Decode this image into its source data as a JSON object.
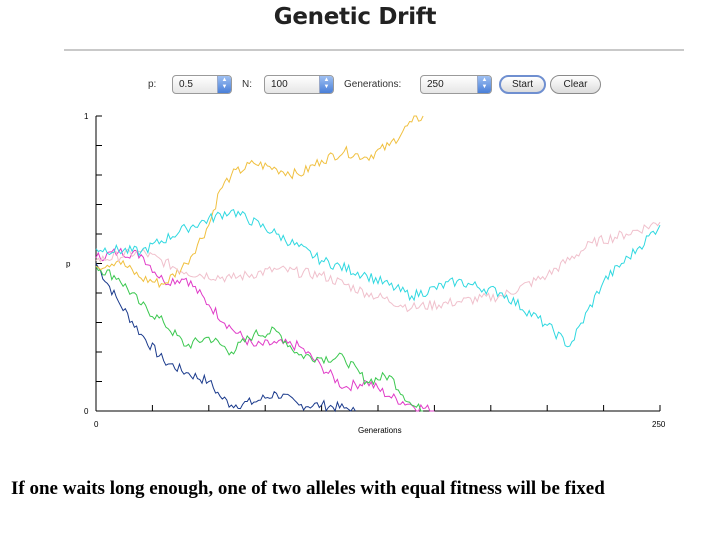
{
  "app": {
    "title": "Genetic Drift"
  },
  "controls": {
    "p_label": "p:",
    "p_value": "0.5",
    "n_label": "N:",
    "n_value": "100",
    "generations_label": "Generations:",
    "generations_value": "250",
    "start_label": "Start",
    "clear_label": "Clear"
  },
  "chart_data": {
    "type": "line",
    "xlabel": "Generations",
    "ylabel": "p",
    "xlim": [
      0,
      250
    ],
    "ylim": [
      0,
      1
    ],
    "x_tick_labels": [
      "0",
      "250"
    ],
    "y_tick_labels": [
      "0",
      "1"
    ],
    "grid": false,
    "series": [
      {
        "color": "#1a3a8c",
        "points": [
          [
            0,
            0.5
          ],
          [
            10,
            0.37
          ],
          [
            20,
            0.26
          ],
          [
            30,
            0.17
          ],
          [
            40,
            0.13
          ],
          [
            50,
            0.1
          ],
          [
            55,
            0.05
          ],
          [
            60,
            0.02
          ],
          [
            70,
            0.03
          ],
          [
            80,
            0.06
          ],
          [
            90,
            0.02
          ],
          [
            100,
            0.02
          ],
          [
            110,
            0.01
          ],
          [
            115,
            0.0
          ]
        ]
      },
      {
        "color": "#e03cc8",
        "points": [
          [
            0,
            0.52
          ],
          [
            10,
            0.54
          ],
          [
            20,
            0.53
          ],
          [
            30,
            0.44
          ],
          [
            40,
            0.45
          ],
          [
            50,
            0.36
          ],
          [
            60,
            0.28
          ],
          [
            70,
            0.22
          ],
          [
            80,
            0.23
          ],
          [
            90,
            0.22
          ],
          [
            100,
            0.15
          ],
          [
            110,
            0.08
          ],
          [
            120,
            0.1
          ],
          [
            130,
            0.05
          ],
          [
            140,
            0.02
          ],
          [
            150,
            0.0
          ]
        ]
      },
      {
        "color": "#3cc850",
        "points": [
          [
            0,
            0.49
          ],
          [
            10,
            0.45
          ],
          [
            20,
            0.36
          ],
          [
            30,
            0.3
          ],
          [
            40,
            0.22
          ],
          [
            50,
            0.25
          ],
          [
            60,
            0.2
          ],
          [
            70,
            0.26
          ],
          [
            80,
            0.27
          ],
          [
            90,
            0.19
          ],
          [
            100,
            0.18
          ],
          [
            110,
            0.18
          ],
          [
            120,
            0.1
          ],
          [
            130,
            0.12
          ],
          [
            140,
            0.02
          ],
          [
            145,
            0.0
          ]
        ]
      },
      {
        "color": "#f0c040",
        "points": [
          [
            0,
            0.49
          ],
          [
            10,
            0.51
          ],
          [
            20,
            0.45
          ],
          [
            30,
            0.43
          ],
          [
            40,
            0.5
          ],
          [
            50,
            0.63
          ],
          [
            55,
            0.75
          ],
          [
            60,
            0.8
          ],
          [
            70,
            0.84
          ],
          [
            80,
            0.82
          ],
          [
            90,
            0.8
          ],
          [
            100,
            0.85
          ],
          [
            110,
            0.88
          ],
          [
            120,
            0.86
          ],
          [
            130,
            0.9
          ],
          [
            140,
            0.98
          ],
          [
            145,
            1.0
          ]
        ]
      },
      {
        "color": "#f0c0cc",
        "points": [
          [
            0,
            0.51
          ],
          [
            20,
            0.54
          ],
          [
            40,
            0.47
          ],
          [
            60,
            0.45
          ],
          [
            80,
            0.48
          ],
          [
            100,
            0.46
          ],
          [
            120,
            0.4
          ],
          [
            140,
            0.35
          ],
          [
            160,
            0.37
          ],
          [
            180,
            0.39
          ],
          [
            200,
            0.46
          ],
          [
            220,
            0.57
          ],
          [
            235,
            0.6
          ],
          [
            250,
            0.64
          ]
        ]
      },
      {
        "color": "#30d8e0",
        "points": [
          [
            0,
            0.55
          ],
          [
            20,
            0.54
          ],
          [
            40,
            0.62
          ],
          [
            60,
            0.68
          ],
          [
            80,
            0.6
          ],
          [
            100,
            0.51
          ],
          [
            120,
            0.46
          ],
          [
            140,
            0.39
          ],
          [
            160,
            0.44
          ],
          [
            180,
            0.4
          ],
          [
            200,
            0.29
          ],
          [
            210,
            0.22
          ],
          [
            225,
            0.44
          ],
          [
            240,
            0.55
          ],
          [
            250,
            0.63
          ]
        ]
      }
    ]
  }
}
